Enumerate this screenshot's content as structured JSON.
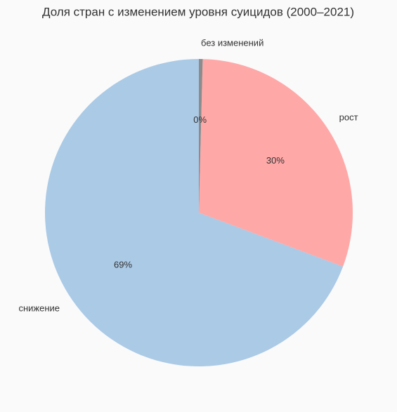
{
  "chart_data": {
    "type": "pie",
    "title": "Доля стран с изменением уровня суицидов (2000–2021)",
    "categories": [
      "снижение",
      "рост",
      "без изменений"
    ],
    "values": [
      69.3,
      30.3,
      0.4
    ],
    "value_labels": [
      "69%",
      "30%",
      "0%"
    ],
    "colors": [
      "#abcae6",
      "#ffa8a8",
      "#8c8c8c"
    ],
    "start_angle": 90,
    "counterclockwise": true
  }
}
